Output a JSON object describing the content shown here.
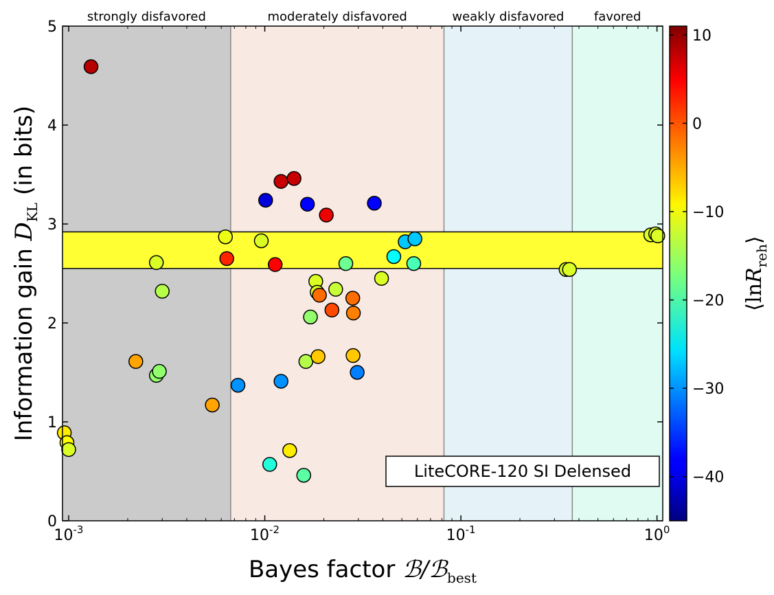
{
  "chart_data": {
    "type": "scatter",
    "xscale": "log",
    "xlim": [
      0.00093,
      1.07
    ],
    "ylim": [
      0,
      5
    ],
    "x_ticks": [
      {
        "value": 0.001,
        "base": "10",
        "exp": "-3"
      },
      {
        "value": 0.01,
        "base": "10",
        "exp": "-2"
      },
      {
        "value": 0.1,
        "base": "10",
        "exp": "-1"
      },
      {
        "value": 1,
        "base": "10",
        "exp": "0"
      }
    ],
    "y_ticks": [
      {
        "value": 0,
        "label": "0"
      },
      {
        "value": 1,
        "label": "1"
      },
      {
        "value": 2,
        "label": "2"
      },
      {
        "value": 3,
        "label": "3"
      },
      {
        "value": 4,
        "label": "4"
      },
      {
        "value": 5,
        "label": "5"
      }
    ],
    "xlabel_text": "Bayes factor ",
    "xlabel_math_main": "ℬ/ℬ",
    "xlabel_math_sub": "best",
    "ylabel_text": "Information gain ",
    "ylabel_math_main": "D",
    "ylabel_math_sub": "KL",
    "ylabel_suffix": "  (in bits)",
    "regions": [
      {
        "label": "strongly disfavored",
        "x0": 0.00093,
        "x1": 0.0067,
        "color": "#cbcbcb"
      },
      {
        "label": "moderately disfavored",
        "x0": 0.0067,
        "x1": 0.082,
        "color": "#f8e9e3"
      },
      {
        "label": "weakly disfavored",
        "x0": 0.082,
        "x1": 0.37,
        "color": "#e5f3f8"
      },
      {
        "label": "favored",
        "x0": 0.37,
        "x1": 1.07,
        "color": "#e0fbf2"
      }
    ],
    "band": {
      "y0": 2.55,
      "y1": 2.92,
      "color": "#ffff33"
    },
    "legend_label": "LiteCORE-120 SI Delensed",
    "colorbar": {
      "min": -45,
      "max": 11,
      "ticks": [
        {
          "value": 10,
          "label": "10"
        },
        {
          "value": 0,
          "label": "0"
        },
        {
          "value": -10,
          "label": "−10"
        },
        {
          "value": -20,
          "label": "−20"
        },
        {
          "value": -30,
          "label": "−30"
        },
        {
          "value": -40,
          "label": "−40"
        }
      ],
      "label_open": "⟨ln",
      "label_main": "R",
      "label_sub": "reh",
      "label_close": "⟩"
    },
    "points": [
      {
        "x": 0.0013,
        "y": 4.59,
        "c": 8
      },
      {
        "x": 0.00095,
        "y": 0.89,
        "c": -9
      },
      {
        "x": 0.00098,
        "y": 0.79,
        "c": -10
      },
      {
        "x": 0.001,
        "y": 0.72,
        "c": -12
      },
      {
        "x": 0.0022,
        "y": 1.61,
        "c": -5
      },
      {
        "x": 0.0028,
        "y": 1.47,
        "c": -16
      },
      {
        "x": 0.0029,
        "y": 1.51,
        "c": -16
      },
      {
        "x": 0.0028,
        "y": 2.61,
        "c": -12
      },
      {
        "x": 0.003,
        "y": 2.32,
        "c": -14
      },
      {
        "x": 0.0054,
        "y": 1.17,
        "c": -5
      },
      {
        "x": 0.0063,
        "y": 2.87,
        "c": -11
      },
      {
        "x": 0.0064,
        "y": 2.65,
        "c": 2
      },
      {
        "x": 0.0073,
        "y": 1.37,
        "c": -30
      },
      {
        "x": 0.0096,
        "y": 2.83,
        "c": -12
      },
      {
        "x": 0.0101,
        "y": 3.24,
        "c": -40
      },
      {
        "x": 0.0106,
        "y": 0.57,
        "c": -22
      },
      {
        "x": 0.0113,
        "y": 2.59,
        "c": 4
      },
      {
        "x": 0.0121,
        "y": 3.43,
        "c": 7
      },
      {
        "x": 0.0121,
        "y": 1.41,
        "c": -30
      },
      {
        "x": 0.0134,
        "y": 0.71,
        "c": -9
      },
      {
        "x": 0.0141,
        "y": 3.46,
        "c": 7
      },
      {
        "x": 0.0158,
        "y": 0.46,
        "c": -19
      },
      {
        "x": 0.0162,
        "y": 1.61,
        "c": -14
      },
      {
        "x": 0.0165,
        "y": 3.2,
        "c": -38
      },
      {
        "x": 0.0171,
        "y": 2.06,
        "c": -16
      },
      {
        "x": 0.0182,
        "y": 2.42,
        "c": -12
      },
      {
        "x": 0.0185,
        "y": 2.31,
        "c": -12
      },
      {
        "x": 0.0187,
        "y": 1.66,
        "c": -7
      },
      {
        "x": 0.019,
        "y": 2.28,
        "c": -2
      },
      {
        "x": 0.0206,
        "y": 3.09,
        "c": 5
      },
      {
        "x": 0.022,
        "y": 2.13,
        "c": 0
      },
      {
        "x": 0.023,
        "y": 2.34,
        "c": -13
      },
      {
        "x": 0.0259,
        "y": 2.6,
        "c": -18
      },
      {
        "x": 0.0281,
        "y": 2.25,
        "c": -2
      },
      {
        "x": 0.0282,
        "y": 1.67,
        "c": -7
      },
      {
        "x": 0.0283,
        "y": 2.1,
        "c": -3
      },
      {
        "x": 0.0296,
        "y": 1.5,
        "c": -31
      },
      {
        "x": 0.0362,
        "y": 3.21,
        "c": -38
      },
      {
        "x": 0.0394,
        "y": 2.45,
        "c": -12
      },
      {
        "x": 0.0455,
        "y": 2.67,
        "c": -24
      },
      {
        "x": 0.052,
        "y": 2.82,
        "c": -27
      },
      {
        "x": 0.0575,
        "y": 2.6,
        "c": -20
      },
      {
        "x": 0.0583,
        "y": 2.85,
        "c": -27
      },
      {
        "x": 0.344,
        "y": 2.54,
        "c": -12
      },
      {
        "x": 0.358,
        "y": 2.54,
        "c": -12
      },
      {
        "x": 0.93,
        "y": 2.89,
        "c": -12
      },
      {
        "x": 0.985,
        "y": 2.9,
        "c": -12
      },
      {
        "x": 1.01,
        "y": 2.88,
        "c": -12
      }
    ]
  }
}
